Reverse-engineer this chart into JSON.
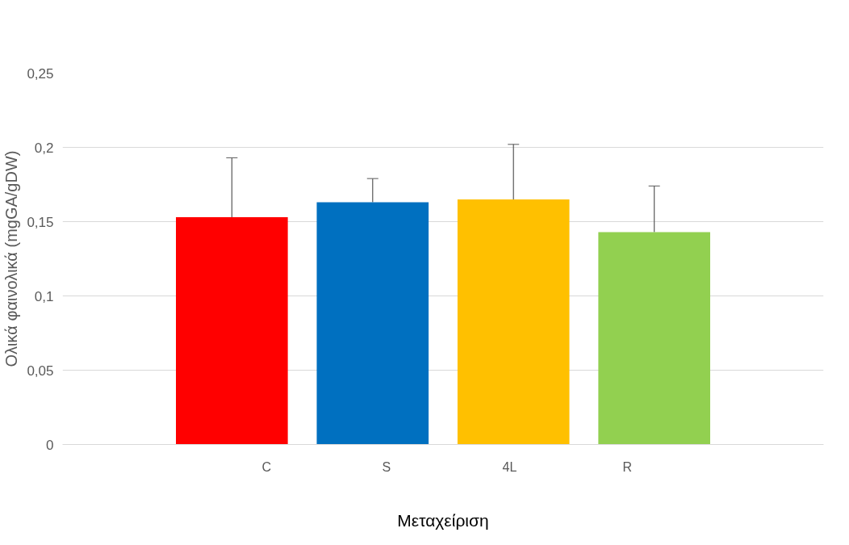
{
  "chart_data": {
    "type": "bar",
    "xlabel": "Μεταχείριση",
    "ylabel": "Ολικά φαινολικά (mgGA/gDW)",
    "categories": [
      null
    ],
    "series": [
      {
        "name": "C",
        "color": "#ff0000",
        "values": [
          0.153
        ],
        "errors": [
          [
            0.153,
            0.193
          ]
        ]
      },
      {
        "name": "S",
        "color": "#0070c0",
        "values": [
          0.163
        ],
        "errors": [
          [
            0.163,
            0.179
          ]
        ]
      },
      {
        "name": "4L",
        "color": "#ffc000",
        "values": [
          0.165
        ],
        "errors": [
          [
            0.165,
            0.202
          ]
        ]
      },
      {
        "name": "R",
        "color": "#92d050",
        "values": [
          0.143
        ],
        "errors": [
          [
            0.143,
            0.174
          ]
        ]
      }
    ],
    "ylim": [
      0,
      0.25
    ],
    "yticks": [
      {
        "value": 0,
        "label": "0"
      },
      {
        "value": 0.05,
        "label": "0,05"
      },
      {
        "value": 0.1,
        "label": "0,1"
      },
      {
        "value": 0.15,
        "label": "0,15"
      },
      {
        "value": 0.2,
        "label": "0,2"
      },
      {
        "value": 0.25,
        "label": "0,25"
      }
    ],
    "grid": "y",
    "legend": "bottom"
  }
}
